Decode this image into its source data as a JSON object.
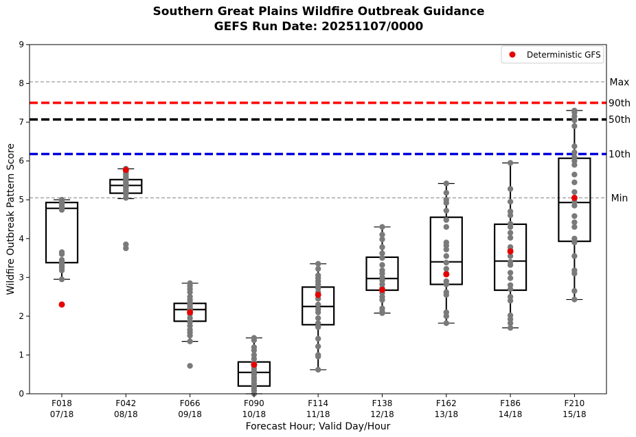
{
  "chart_data": {
    "type": "box",
    "title": "Southern Great Plains Wildfire Outbreak Guidance",
    "subtitle": "GEFS Run Date: 20251107/0000",
    "xlabel": "Forecast Hour; Valid Day/Hour",
    "ylabel": "Wildfire Outbreak Pattern Score",
    "ylim": [
      0,
      9
    ],
    "yticks": [
      "0",
      "1",
      "2",
      "3",
      "4",
      "5",
      "6",
      "7",
      "8",
      "9"
    ],
    "categories": [
      {
        "hour": "F018",
        "valid": "07/18"
      },
      {
        "hour": "F042",
        "valid": "08/18"
      },
      {
        "hour": "F066",
        "valid": "09/18"
      },
      {
        "hour": "F090",
        "valid": "10/18"
      },
      {
        "hour": "F114",
        "valid": "11/18"
      },
      {
        "hour": "F138",
        "valid": "12/18"
      },
      {
        "hour": "F162",
        "valid": "13/18"
      },
      {
        "hour": "F186",
        "valid": "14/18"
      },
      {
        "hour": "F210",
        "valid": "15/18"
      }
    ],
    "boxes": [
      {
        "q1": 3.38,
        "median": 4.78,
        "q3": 4.93,
        "whisker_low": 2.95,
        "whisker_high": 5.0
      },
      {
        "q1": 5.17,
        "median": 5.37,
        "q3": 5.52,
        "whisker_low": 5.03,
        "whisker_high": 5.8
      },
      {
        "q1": 1.87,
        "median": 2.17,
        "q3": 2.33,
        "whisker_low": 1.35,
        "whisker_high": 2.85
      },
      {
        "q1": 0.2,
        "median": 0.55,
        "q3": 0.82,
        "whisker_low": 0.0,
        "whisker_high": 1.44
      },
      {
        "q1": 1.78,
        "median": 2.25,
        "q3": 2.75,
        "whisker_low": 0.62,
        "whisker_high": 3.35
      },
      {
        "q1": 2.67,
        "median": 2.97,
        "q3": 3.52,
        "whisker_low": 2.08,
        "whisker_high": 4.3
      },
      {
        "q1": 2.82,
        "median": 3.4,
        "q3": 4.55,
        "whisker_low": 1.82,
        "whisker_high": 5.42
      },
      {
        "q1": 2.67,
        "median": 3.42,
        "q3": 4.37,
        "whisker_low": 1.7,
        "whisker_high": 5.95
      },
      {
        "q1": 3.93,
        "median": 4.93,
        "q3": 6.07,
        "whisker_low": 2.43,
        "whisker_high": 7.3
      }
    ],
    "ensemble_members": [
      [
        5.0,
        4.98,
        4.95,
        4.92,
        4.9,
        4.87,
        4.83,
        4.78,
        4.74,
        3.65,
        3.6,
        3.45,
        3.4,
        3.35,
        3.3,
        3.25,
        3.18,
        2.95
      ],
      [
        5.8,
        5.75,
        5.7,
        5.65,
        5.6,
        5.55,
        5.5,
        5.45,
        5.4,
        5.37,
        5.33,
        5.3,
        5.25,
        5.2,
        5.15,
        5.05,
        3.85,
        3.75
      ],
      [
        2.85,
        2.78,
        2.7,
        2.62,
        2.5,
        2.42,
        2.35,
        2.3,
        2.25,
        2.2,
        2.17,
        2.12,
        2.05,
        1.95,
        1.85,
        1.75,
        1.65,
        1.58,
        1.5,
        1.35,
        0.72
      ],
      [
        1.44,
        1.38,
        1.2,
        1.12,
        1.0,
        0.9,
        0.8,
        0.72,
        0.65,
        0.58,
        0.5,
        0.42,
        0.35,
        0.27,
        0.2,
        0.15,
        0.08,
        0.0
      ],
      [
        3.35,
        3.22,
        3.05,
        2.98,
        2.9,
        2.82,
        2.72,
        2.62,
        2.45,
        2.3,
        2.18,
        2.1,
        1.95,
        1.82,
        1.72,
        1.42,
        1.22,
        1.0,
        0.96,
        0.62
      ],
      [
        4.3,
        4.1,
        3.98,
        3.78,
        3.62,
        3.5,
        3.32,
        3.18,
        3.1,
        3.0,
        2.92,
        2.82,
        2.72,
        2.6,
        2.5,
        2.42,
        2.2,
        2.12,
        2.08
      ],
      [
        5.42,
        5.18,
        5.0,
        4.92,
        4.72,
        4.48,
        4.3,
        3.9,
        3.82,
        3.72,
        3.55,
        3.38,
        3.22,
        3.1,
        2.9,
        2.82,
        2.62,
        2.55,
        2.1,
        2.0,
        1.82
      ],
      [
        5.95,
        5.28,
        4.95,
        4.7,
        4.6,
        4.38,
        4.3,
        4.15,
        4.02,
        3.78,
        3.7,
        3.55,
        3.4,
        3.32,
        3.12,
        2.98,
        2.8,
        2.7,
        2.5,
        2.4,
        2.02,
        1.92,
        1.82,
        1.7
      ],
      [
        7.3,
        7.25,
        7.15,
        7.05,
        6.9,
        6.38,
        6.22,
        6.1,
        6.0,
        5.9,
        5.65,
        5.45,
        5.2,
        5.05,
        4.95,
        4.85,
        4.58,
        4.42,
        4.3,
        4.0,
        3.9,
        3.55,
        3.18,
        3.1,
        2.65,
        2.43
      ]
    ],
    "deterministic_gfs": {
      "name": "Deterministic GFS",
      "color": "#e60000",
      "values": [
        2.3,
        5.77,
        2.1,
        0.75,
        2.55,
        2.68,
        3.08,
        3.67,
        5.05
      ]
    },
    "reference_lines": [
      {
        "label": "Max",
        "value": 8.04,
        "color": "#808080",
        "style": "thin-dashed"
      },
      {
        "label": "90th",
        "value": 7.5,
        "color": "#ff0000",
        "style": "thick-dashed"
      },
      {
        "label": "50th",
        "value": 7.07,
        "color": "#000000",
        "style": "thick-dashed"
      },
      {
        "label": "10th",
        "value": 6.18,
        "color": "#0000dd",
        "style": "thick-dashed"
      },
      {
        "label": "Min",
        "value": 5.05,
        "color": "#808080",
        "style": "thin-dashed"
      }
    ],
    "member_color": "#7a7a7a",
    "legend_position": "top-right",
    "grid": false
  }
}
